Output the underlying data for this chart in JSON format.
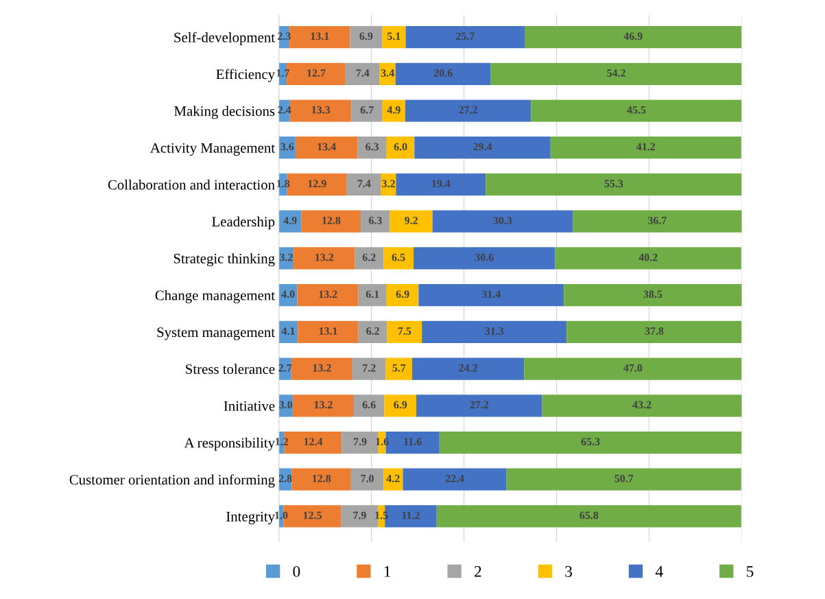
{
  "chart_data": {
    "type": "bar",
    "orientation": "horizontal",
    "stacked": true,
    "grid": "x",
    "legend": "bottom",
    "tick_labels": "y",
    "xlim": [
      0,
      100
    ],
    "xticks": [
      {
        "value": 0,
        "label": null
      },
      {
        "value": 20,
        "label": null
      },
      {
        "value": 40,
        "label": null
      },
      {
        "value": 60,
        "label": null
      },
      {
        "value": 80,
        "label": null
      },
      {
        "value": 100,
        "label": null
      }
    ],
    "categories": [
      "Self-development",
      "Efficiency",
      "Making decisions",
      "Activity Management",
      "Collaboration and interaction",
      "Leadership",
      "Strategic thinking",
      "Change management",
      "System management",
      "Stress tolerance",
      "Initiative",
      "A responsibility",
      "Customer orientation and informing",
      "Integrity"
    ],
    "series": [
      {
        "name": "0",
        "color": "#5b9bd5",
        "values": [
          2.3,
          1.7,
          2.4,
          3.6,
          1.8,
          4.9,
          3.2,
          4.0,
          4.1,
          2.7,
          3.0,
          1.2,
          2.8,
          1.0
        ],
        "value_labels": [
          "2.3",
          "1.7",
          "2.4",
          "3.6",
          "1.8",
          "4.9",
          "3.2",
          "4.0",
          "4.1",
          "2.7",
          "3.0",
          "1.2",
          "2.8",
          "1.0"
        ]
      },
      {
        "name": "1",
        "color": "#ed7d31",
        "values": [
          13.1,
          12.7,
          13.3,
          13.4,
          12.9,
          12.8,
          13.2,
          13.2,
          13.1,
          13.2,
          13.2,
          12.4,
          12.8,
          12.5
        ],
        "value_labels": [
          "13.1",
          "12.7",
          "13.3",
          "13.4",
          "12.9",
          "12.8",
          "13.2",
          "13.2",
          "13.1",
          "13.2",
          "13.2",
          "12.4",
          "12.8",
          "12.5"
        ]
      },
      {
        "name": "2",
        "color": "#a5a5a5",
        "values": [
          6.9,
          7.4,
          6.7,
          6.3,
          7.4,
          6.3,
          6.2,
          6.1,
          6.2,
          7.2,
          6.6,
          7.9,
          7.0,
          7.9
        ],
        "value_labels": [
          "6.9",
          "7.4",
          "6.7",
          "6.3",
          "7.4",
          "6.3",
          "6.2",
          "6.1",
          "6.2",
          "7.2",
          "6.6",
          "7.9",
          "7.0",
          "7.9"
        ]
      },
      {
        "name": "3",
        "color": "#ffc000",
        "values": [
          5.1,
          3.4,
          4.9,
          6.0,
          3.2,
          9.2,
          6.5,
          6.9,
          7.5,
          5.7,
          6.9,
          1.6,
          4.2,
          1.5
        ],
        "value_labels": [
          "5.1",
          "3.4",
          "4.9",
          "6.0",
          "3.2",
          "9.2",
          "6.5",
          "6.9",
          "7.5",
          "5.7",
          "6.9",
          "1.6",
          "4.2",
          "1.5"
        ]
      },
      {
        "name": "4",
        "color": "#4472c4",
        "values": [
          25.7,
          20.6,
          27.2,
          29.4,
          19.4,
          30.3,
          30.6,
          31.4,
          31.3,
          24.2,
          27.2,
          11.6,
          22.4,
          11.2
        ],
        "value_labels": [
          "25.7",
          "20.6",
          "27.2",
          "29.4",
          "19.4",
          "30.3",
          "30.6",
          "31.4",
          "31.3",
          "24.2",
          "27.2",
          "11.6",
          "22.4",
          "11.2"
        ]
      },
      {
        "name": "5",
        "color": "#70ad47",
        "values": [
          46.9,
          54.2,
          45.5,
          41.2,
          55.3,
          36.7,
          40.2,
          38.5,
          37.8,
          47.0,
          43.2,
          65.3,
          50.7,
          65.8
        ],
        "value_labels": [
          "46.9",
          "54.2",
          "45.5",
          "41.2",
          "55.3",
          "36.7",
          "40.2",
          "38.5",
          "37.8",
          "47.0",
          "43.2",
          "65.3",
          "50.7",
          "65.8"
        ]
      }
    ]
  }
}
